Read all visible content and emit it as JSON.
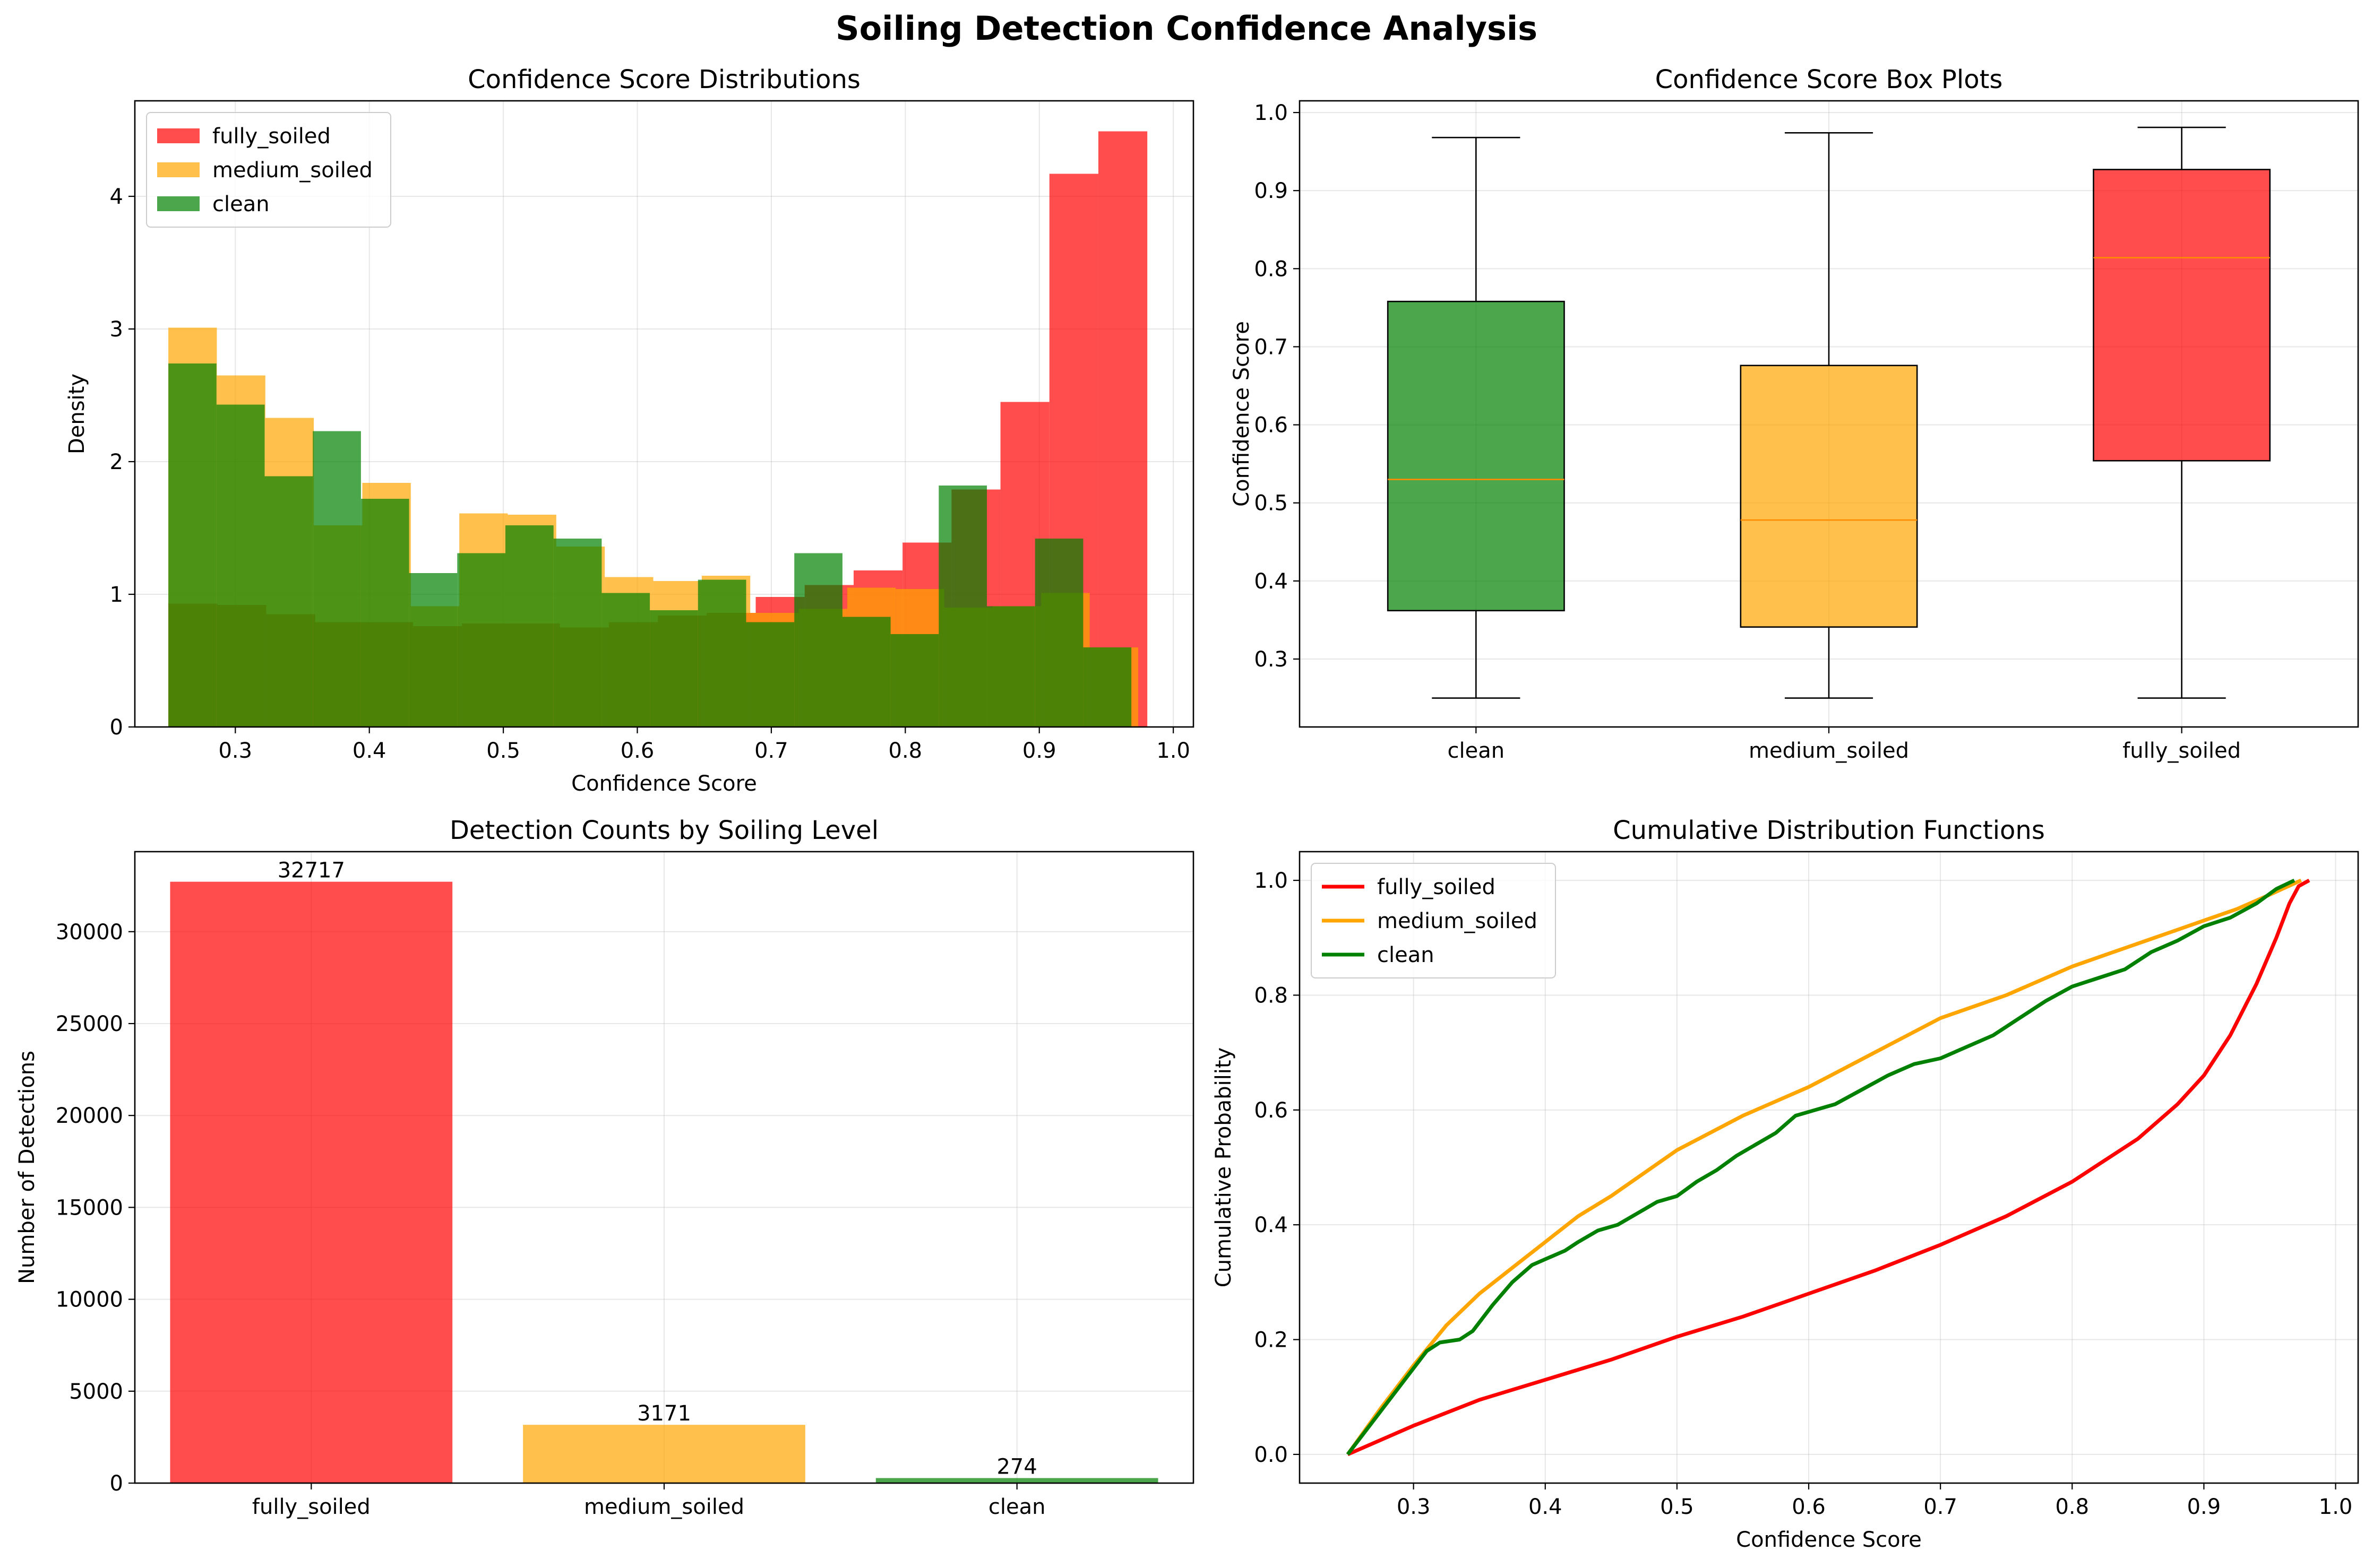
{
  "suptitle": "Soiling Detection Confidence Analysis",
  "colors": {
    "fully_soiled": "#ff0000",
    "medium_soiled": "#ffa500",
    "clean": "#008000",
    "grid": "#b0b0b0",
    "median": "#ff8c00"
  },
  "chart_data": [
    {
      "type": "histogram",
      "title": "Confidence Score Distributions",
      "xlabel": "Confidence Score",
      "ylabel": "Density",
      "xlim": [
        0.225,
        1.015
      ],
      "ylim": [
        0,
        4.72
      ],
      "xticks": [
        0.3,
        0.4,
        0.5,
        0.6,
        0.7,
        0.8,
        0.9,
        1.0
      ],
      "yticks": [
        0,
        1,
        2,
        3,
        4
      ],
      "grid": true,
      "legend": "upper-left",
      "series": [
        {
          "name": "fully_soiled",
          "color_key": "fully_soiled",
          "bin_start": 0.25,
          "bin_end": 0.9806,
          "bins": 20,
          "values": [
            0.93,
            0.92,
            0.85,
            0.79,
            0.79,
            0.76,
            0.78,
            0.78,
            0.75,
            0.79,
            0.84,
            0.86,
            0.98,
            1.07,
            1.18,
            1.39,
            1.79,
            2.45,
            4.17,
            4.49
          ]
        },
        {
          "name": "medium_soiled",
          "color_key": "medium_soiled",
          "bin_start": 0.25,
          "bin_end": 0.9738,
          "bins": 20,
          "values": [
            3.01,
            2.65,
            2.33,
            1.52,
            1.84,
            0.91,
            1.61,
            1.6,
            1.36,
            1.13,
            1.1,
            1.14,
            0.86,
            0.89,
            1.05,
            1.04,
            0.9,
            0.91,
            1.01,
            0.6
          ]
        },
        {
          "name": "clean",
          "color_key": "clean",
          "bin_start": 0.25,
          "bin_end": 0.9687,
          "bins": 20,
          "values": [
            2.74,
            2.43,
            1.89,
            2.23,
            1.72,
            1.16,
            1.31,
            1.52,
            1.42,
            1.01,
            0.88,
            1.11,
            0.79,
            1.31,
            0.83,
            0.7,
            1.82,
            0.91,
            1.42,
            0.6
          ]
        }
      ]
    },
    {
      "type": "box",
      "title": "Confidence Score Box Plots",
      "xlabel": "",
      "ylabel": "Confidence Score",
      "ylim": [
        0.213,
        1.015
      ],
      "yticks": [
        0.3,
        0.4,
        0.5,
        0.6,
        0.7,
        0.8,
        0.9,
        1.0
      ],
      "grid": true,
      "categories": [
        "clean",
        "medium_soiled",
        "fully_soiled"
      ],
      "boxes": [
        {
          "name": "clean",
          "color_key": "clean",
          "whislo": 0.25,
          "q1": 0.362,
          "med": 0.53,
          "q3": 0.758,
          "whishi": 0.968
        },
        {
          "name": "medium_soiled",
          "color_key": "medium_soiled",
          "whislo": 0.25,
          "q1": 0.341,
          "med": 0.478,
          "q3": 0.676,
          "whishi": 0.974
        },
        {
          "name": "fully_soiled",
          "color_key": "fully_soiled",
          "whislo": 0.25,
          "q1": 0.554,
          "med": 0.814,
          "q3": 0.927,
          "whishi": 0.981
        }
      ]
    },
    {
      "type": "bar",
      "title": "Detection Counts by Soiling Level",
      "xlabel": "",
      "ylabel": "Number of Detections",
      "ylim": [
        0,
        34353
      ],
      "yticks": [
        0,
        5000,
        10000,
        15000,
        20000,
        25000,
        30000
      ],
      "grid": true,
      "categories": [
        "fully_soiled",
        "medium_soiled",
        "clean"
      ],
      "values": [
        32717,
        3171,
        274
      ],
      "color_keys": [
        "fully_soiled",
        "medium_soiled",
        "clean"
      ]
    },
    {
      "type": "line",
      "title": "Cumulative Distribution Functions",
      "xlabel": "Confidence Score",
      "ylabel": "Cumulative Probability",
      "xlim": [
        0.2135,
        1.0171
      ],
      "ylim": [
        -0.05,
        1.05
      ],
      "xticks": [
        0.3,
        0.4,
        0.5,
        0.6,
        0.7,
        0.8,
        0.9,
        1.0
      ],
      "yticks": [
        0.0,
        0.2,
        0.4,
        0.6,
        0.8,
        1.0
      ],
      "grid": true,
      "legend": "upper-left",
      "series": [
        {
          "name": "fully_soiled",
          "color_key": "fully_soiled",
          "points": [
            [
              0.25,
              0.0
            ],
            [
              0.3,
              0.05
            ],
            [
              0.35,
              0.095
            ],
            [
              0.4,
              0.13
            ],
            [
              0.45,
              0.165
            ],
            [
              0.5,
              0.205
            ],
            [
              0.55,
              0.24
            ],
            [
              0.6,
              0.28
            ],
            [
              0.65,
              0.32
            ],
            [
              0.7,
              0.365
            ],
            [
              0.75,
              0.415
            ],
            [
              0.8,
              0.475
            ],
            [
              0.85,
              0.55
            ],
            [
              0.88,
              0.61
            ],
            [
              0.9,
              0.66
            ],
            [
              0.92,
              0.73
            ],
            [
              0.94,
              0.82
            ],
            [
              0.955,
              0.9
            ],
            [
              0.965,
              0.96
            ],
            [
              0.972,
              0.99
            ],
            [
              0.98,
              1.0
            ]
          ]
        },
        {
          "name": "medium_soiled",
          "color_key": "medium_soiled",
          "points": [
            [
              0.25,
              0.0
            ],
            [
              0.275,
              0.08
            ],
            [
              0.3,
              0.155
            ],
            [
              0.325,
              0.225
            ],
            [
              0.35,
              0.28
            ],
            [
              0.375,
              0.325
            ],
            [
              0.4,
              0.37
            ],
            [
              0.425,
              0.415
            ],
            [
              0.45,
              0.45
            ],
            [
              0.475,
              0.49
            ],
            [
              0.5,
              0.53
            ],
            [
              0.525,
              0.56
            ],
            [
              0.55,
              0.59
            ],
            [
              0.575,
              0.615
            ],
            [
              0.6,
              0.64
            ],
            [
              0.625,
              0.67
            ],
            [
              0.65,
              0.7
            ],
            [
              0.675,
              0.73
            ],
            [
              0.7,
              0.76
            ],
            [
              0.725,
              0.78
            ],
            [
              0.75,
              0.8
            ],
            [
              0.775,
              0.825
            ],
            [
              0.8,
              0.85
            ],
            [
              0.825,
              0.87
            ],
            [
              0.85,
              0.89
            ],
            [
              0.875,
              0.91
            ],
            [
              0.9,
              0.93
            ],
            [
              0.925,
              0.95
            ],
            [
              0.95,
              0.975
            ],
            [
              0.9738,
              1.0
            ]
          ]
        },
        {
          "name": "clean",
          "color_key": "clean",
          "points": [
            [
              0.25,
              0.0
            ],
            [
              0.275,
              0.075
            ],
            [
              0.3,
              0.15
            ],
            [
              0.31,
              0.18
            ],
            [
              0.32,
              0.195
            ],
            [
              0.335,
              0.2
            ],
            [
              0.345,
              0.215
            ],
            [
              0.36,
              0.26
            ],
            [
              0.375,
              0.3
            ],
            [
              0.39,
              0.33
            ],
            [
              0.4,
              0.34
            ],
            [
              0.415,
              0.355
            ],
            [
              0.425,
              0.37
            ],
            [
              0.44,
              0.39
            ],
            [
              0.455,
              0.4
            ],
            [
              0.47,
              0.42
            ],
            [
              0.485,
              0.44
            ],
            [
              0.5,
              0.45
            ],
            [
              0.515,
              0.475
            ],
            [
              0.53,
              0.495
            ],
            [
              0.545,
              0.52
            ],
            [
              0.56,
              0.54
            ],
            [
              0.575,
              0.56
            ],
            [
              0.59,
              0.59
            ],
            [
              0.605,
              0.6
            ],
            [
              0.62,
              0.61
            ],
            [
              0.64,
              0.635
            ],
            [
              0.66,
              0.66
            ],
            [
              0.68,
              0.68
            ],
            [
              0.7,
              0.69
            ],
            [
              0.72,
              0.71
            ],
            [
              0.74,
              0.73
            ],
            [
              0.76,
              0.76
            ],
            [
              0.78,
              0.79
            ],
            [
              0.8,
              0.815
            ],
            [
              0.82,
              0.83
            ],
            [
              0.84,
              0.845
            ],
            [
              0.86,
              0.875
            ],
            [
              0.88,
              0.895
            ],
            [
              0.9,
              0.92
            ],
            [
              0.92,
              0.935
            ],
            [
              0.94,
              0.96
            ],
            [
              0.955,
              0.985
            ],
            [
              0.9687,
              1.0
            ]
          ]
        }
      ]
    }
  ]
}
